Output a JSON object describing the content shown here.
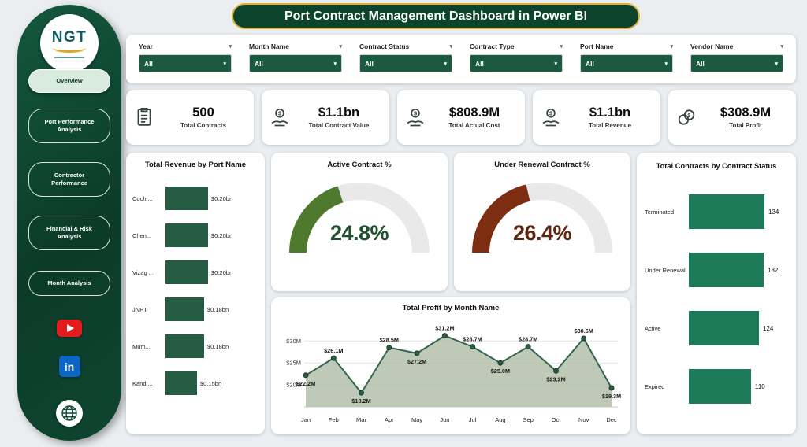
{
  "page": {
    "background": "#eaeef0",
    "accent_green": "#0c432d",
    "gold": "#ddb23c"
  },
  "header": {
    "title": "Port Contract Management  Dashboard in Power BI"
  },
  "sidebar": {
    "logo_text": "NGT",
    "items": [
      {
        "label": "Overview",
        "active": true
      },
      {
        "label": "Port Performance Analysis",
        "active": false
      },
      {
        "label": "Contractor Performance",
        "active": false
      },
      {
        "label": "Financial & Risk Analysis",
        "active": false
      },
      {
        "label": "Month Analysis",
        "active": false
      }
    ],
    "linkedin_label": "in"
  },
  "filters": [
    {
      "label": "Year",
      "value": "All"
    },
    {
      "label": "Month Name",
      "value": "All"
    },
    {
      "label": "Contract Status",
      "value": "All"
    },
    {
      "label": "Contract Type",
      "value": "All"
    },
    {
      "label": "Port Name",
      "value": "All"
    },
    {
      "label": "Vendor Name",
      "value": "All"
    }
  ],
  "kpis": [
    {
      "value": "500",
      "label": "Total Contracts"
    },
    {
      "value": "$1.1bn",
      "label": "Total Contract Value"
    },
    {
      "value": "$808.9M",
      "label": "Total Actual Cost"
    },
    {
      "value": "$1.1bn",
      "label": "Total Revenue"
    },
    {
      "value": "$308.9M",
      "label": "Total Profit"
    }
  ],
  "chart_data": [
    {
      "type": "bar",
      "orientation": "horizontal",
      "title": "Total Revenue by Port Name",
      "categories": [
        "Cochi...",
        "Chen...",
        "Vizag ...",
        "JNPT",
        "Mum...",
        "Kandl..."
      ],
      "values": [
        0.2,
        0.2,
        0.2,
        0.18,
        0.18,
        0.15
      ],
      "value_labels": [
        "$0.20bn",
        "$0.20bn",
        "$0.20bn",
        "$0.18bn",
        "$0.18bn",
        "$0.15bn"
      ],
      "bar_color": "#265c43"
    },
    {
      "type": "gauge",
      "title": "Active Contract %",
      "value": 24.8,
      "value_label": "24.8%",
      "arc_color": "#4f7a2e",
      "text_color": "#1e4f2f"
    },
    {
      "type": "gauge",
      "title": "Under Renewal Contract %",
      "value": 26.4,
      "value_label": "26.4%",
      "arc_color": "#7c2d12",
      "text_color": "#5e2510"
    },
    {
      "type": "area",
      "title": "Total Profit by Month Name",
      "categories": [
        "Jan",
        "Feb",
        "Mar",
        "Apr",
        "May",
        "Jun",
        "Jul",
        "Aug",
        "Sep",
        "Oct",
        "Nov",
        "Dec"
      ],
      "values": [
        22.2,
        26.1,
        18.2,
        28.5,
        27.2,
        31.2,
        28.7,
        25.0,
        28.7,
        23.2,
        30.6,
        19.3
      ],
      "value_labels": [
        "$22.2M",
        "$26.1M",
        "$18.2M",
        "$28.5M",
        "$27.2M",
        "$31.2M",
        "$28.7M",
        "$25.0M",
        "$28.7M",
        "$23.2M",
        "$30.6M",
        "$19.3M"
      ],
      "label_positions": [
        "below",
        "above",
        "below",
        "above",
        "below",
        "above",
        "above",
        "below",
        "above",
        "below",
        "above",
        "below"
      ],
      "yticks": [
        {
          "value": 30,
          "label": "$30M"
        },
        {
          "value": 25,
          "label": "$25M"
        },
        {
          "value": 20,
          "label": "$20M"
        }
      ],
      "ylim": [
        15,
        34
      ],
      "line_color": "#33664c",
      "fill_color": "#b3bfac",
      "marker_color": "#2d5e45"
    },
    {
      "type": "bar",
      "orientation": "horizontal",
      "title": "Total Contracts by Contract Status",
      "categories": [
        "Terminated",
        "Under Renewal",
        "Active",
        "Expired"
      ],
      "values": [
        134,
        132,
        124,
        110
      ],
      "bar_color": "#1e7b5a"
    }
  ]
}
